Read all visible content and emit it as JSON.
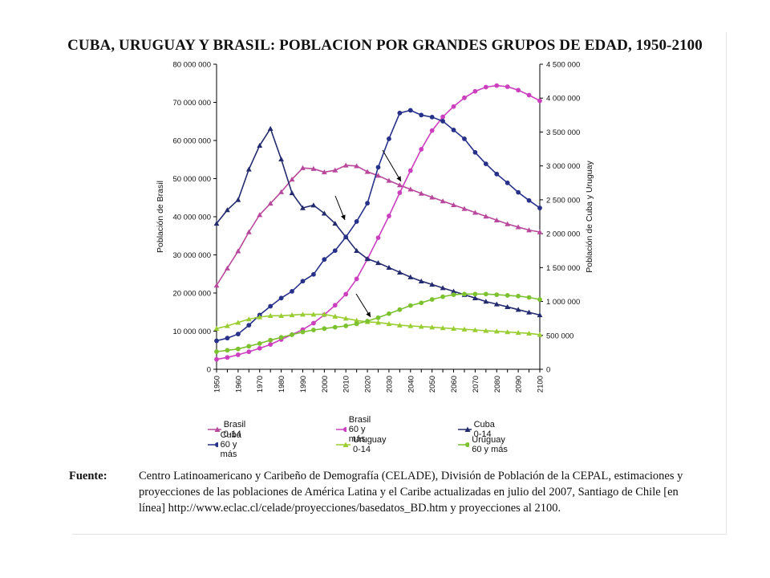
{
  "title": "CUBA, URUGUAY Y BRASIL: POBLACION POR GRANDES GRUPOS DE EDAD, 1950-2100",
  "source": {
    "label": "Fuente",
    "colon": ":",
    "text": "Centro Latinoamericano y Caribeño de Demografía (CELADE), División de Población de la CEPAL, estimaciones y proyecciones de las poblaciones de América Latina y el Caribe actualizadas en julio del 2007, Santiago de Chile [en línea] http://www.eclac.cl/celade/proyecciones/basedatos_BD.htm y proyecciones al 2100."
  },
  "chart_data": {
    "type": "line",
    "title": "CUBA, URUGUAY Y BRASIL: POBLACION POR GRANDES GRUPOS DE EDAD, 1950-2100",
    "x": [
      1950,
      1955,
      1960,
      1965,
      1970,
      1975,
      1980,
      1985,
      1990,
      1995,
      2000,
      2005,
      2010,
      2015,
      2020,
      2025,
      2030,
      2035,
      2040,
      2045,
      2050,
      2055,
      2060,
      2065,
      2070,
      2075,
      2080,
      2085,
      2090,
      2095,
      2100
    ],
    "x_tick_labels": [
      "1950",
      "1960",
      "1970",
      "1980",
      "1990",
      "2000",
      "2010",
      "2020",
      "2030",
      "2040",
      "2050",
      "2060",
      "2070",
      "2080",
      "2090",
      "2100"
    ],
    "xlim": [
      1950,
      2100
    ],
    "ylabel_left": "Población de Brasil",
    "ylabel_right": "Población de Cuba y Uruguay",
    "ylim_left": [
      0,
      80000000
    ],
    "ylim_right": [
      0,
      4500000
    ],
    "y_ticks_left": [
      "0",
      "10 000 000",
      "20 000 000",
      "30 000 000",
      "40 000 000",
      "50 000 000",
      "60 000 000",
      "70 000 000",
      "80 000 000"
    ],
    "y_ticks_right": [
      "0",
      "500 000",
      "1 000 000",
      "1 500 000",
      "2 000 000",
      "2 500 000",
      "3 000 000",
      "3 500 000",
      "4 000 000",
      "4 500 000"
    ],
    "grid": false,
    "legend_position": "bottom",
    "series": [
      {
        "name": "Brasil 0-14",
        "axis": "left",
        "color": "#b8489c",
        "marker": "triangle",
        "values": [
          22000000,
          26500000,
          31000000,
          36000000,
          40500000,
          43500000,
          46500000,
          49800000,
          52800000,
          52600000,
          51700000,
          52200000,
          53500000,
          53300000,
          51800000,
          50800000,
          49500000,
          48300000,
          47200000,
          46100000,
          45100000,
          44100000,
          43100000,
          42100000,
          41100000,
          40100000,
          39100000,
          38100000,
          37300000,
          36500000,
          36000000
        ]
      },
      {
        "name": "Brasil 60 y más",
        "axis": "left",
        "color": "#cc3fbf",
        "marker": "circle",
        "values": [
          2600000,
          3100000,
          3800000,
          4600000,
          5500000,
          6500000,
          7800000,
          9100000,
          10400000,
          12100000,
          14300000,
          16800000,
          19700000,
          23700000,
          28900000,
          34500000,
          40200000,
          46300000,
          52100000,
          57700000,
          62600000,
          66200000,
          68900000,
          71200000,
          72900000,
          74000000,
          74400000,
          74100000,
          73200000,
          71900000,
          70400000
        ]
      },
      {
        "name": "Cuba 0-14",
        "axis": "right",
        "color": "#232b6e",
        "marker": "triangle",
        "values": [
          2150000,
          2350000,
          2500000,
          2950000,
          3300000,
          3550000,
          3100000,
          2600000,
          2380000,
          2420000,
          2300000,
          2150000,
          1950000,
          1750000,
          1630000,
          1570000,
          1500000,
          1430000,
          1360000,
          1300000,
          1250000,
          1200000,
          1150000,
          1100000,
          1050000,
          1000000,
          960000,
          920000,
          880000,
          840000,
          800000
        ]
      },
      {
        "name": "Cuba 60 y más",
        "axis": "right",
        "color": "#27318a",
        "marker": "circle",
        "values": [
          420000,
          460000,
          520000,
          650000,
          800000,
          930000,
          1050000,
          1150000,
          1300000,
          1400000,
          1620000,
          1750000,
          1950000,
          2180000,
          2450000,
          2980000,
          3400000,
          3780000,
          3820000,
          3750000,
          3720000,
          3660000,
          3530000,
          3400000,
          3200000,
          3030000,
          2880000,
          2750000,
          2610000,
          2490000,
          2380000
        ]
      },
      {
        "name": "Uruguay 0-14",
        "axis": "right",
        "color": "#9acd32",
        "marker": "triangle",
        "values": [
          600000,
          640000,
          690000,
          740000,
          770000,
          790000,
          790000,
          800000,
          810000,
          810000,
          810000,
          780000,
          750000,
          720000,
          700000,
          690000,
          670000,
          650000,
          640000,
          630000,
          620000,
          610000,
          600000,
          590000,
          580000,
          570000,
          560000,
          550000,
          540000,
          530000,
          510000
        ]
      },
      {
        "name": "Uruguay 60 y más",
        "axis": "right",
        "color": "#7cc22e",
        "marker": "circle",
        "values": [
          260000,
          280000,
          300000,
          340000,
          380000,
          430000,
          470000,
          510000,
          550000,
          580000,
          600000,
          620000,
          640000,
          670000,
          710000,
          760000,
          820000,
          880000,
          940000,
          980000,
          1030000,
          1070000,
          1100000,
          1110000,
          1110000,
          1110000,
          1100000,
          1090000,
          1080000,
          1060000,
          1030000
        ]
      }
    ]
  }
}
